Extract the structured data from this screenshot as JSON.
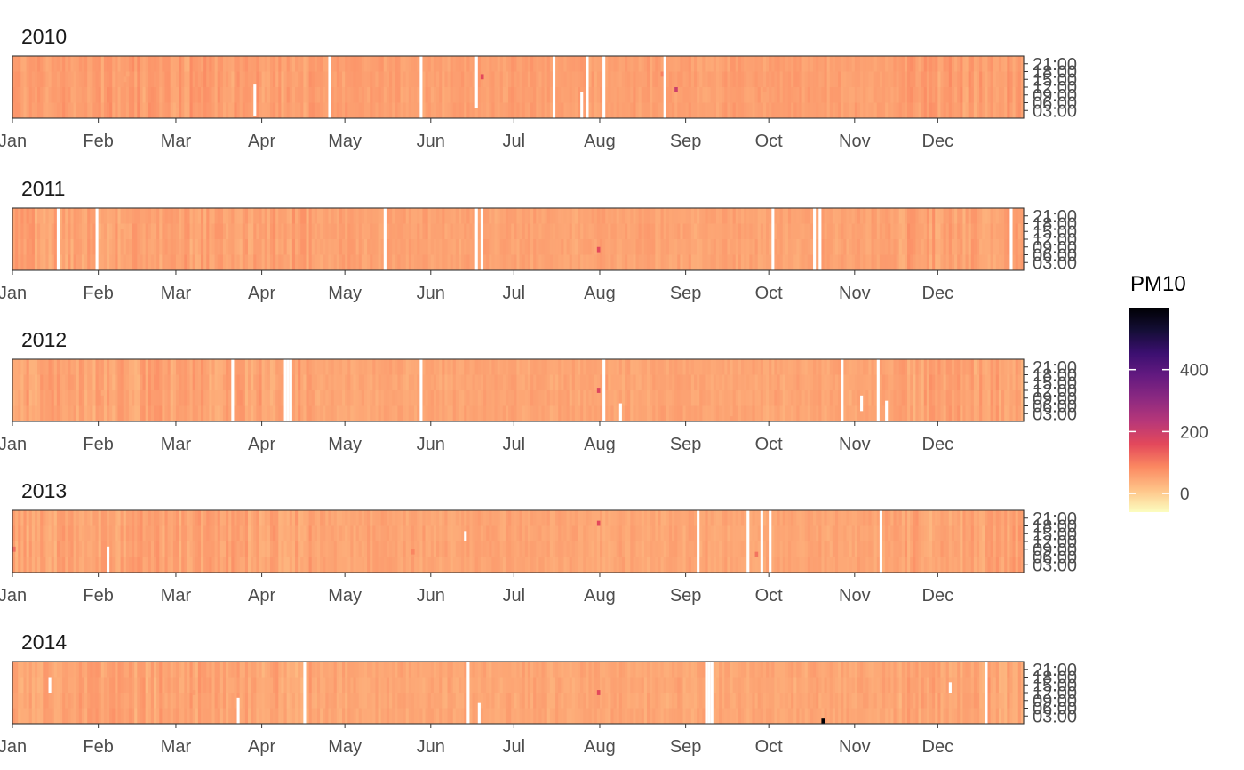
{
  "chart_data": {
    "type": "heatmap",
    "variable": "PM10",
    "legend": {
      "title": "PM10",
      "ticks": [
        0,
        200,
        400
      ],
      "range": [
        -60,
        600
      ],
      "colors": [
        "#FCFDBF",
        "#FEC287",
        "#FB8861",
        "#E3485B",
        "#B73779",
        "#8C2981",
        "#641A80",
        "#3B0F70",
        "#140E36",
        "#000004"
      ]
    },
    "x_axis": {
      "tick_labels": [
        "Jan",
        "Feb",
        "Mar",
        "Apr",
        "May",
        "Jun",
        "Jul",
        "Aug",
        "Sep",
        "Oct",
        "Nov",
        "Dec"
      ],
      "range_days": [
        1,
        366
      ]
    },
    "y_axis": {
      "tick_labels": [
        "03:00",
        "06:00",
        "09:00",
        "12:00",
        "15:00",
        "18:00",
        "21:00"
      ],
      "tick_hours": [
        3,
        6,
        9,
        12,
        15,
        18,
        21
      ],
      "range_hours": [
        0,
        24
      ]
    },
    "panels": [
      {
        "title": "2010",
        "typical_value": 55,
        "gaps": [
          [
            88,
            1,
            13
          ],
          [
            115,
            0,
            24
          ],
          [
            148,
            0,
            24
          ],
          [
            168,
            4,
            24
          ],
          [
            196,
            0,
            24
          ],
          [
            206,
            0,
            10
          ],
          [
            208,
            0,
            24
          ],
          [
            214,
            0,
            24
          ],
          [
            236,
            0,
            24
          ]
        ],
        "hotspots": [
          [
            41,
            50
          ],
          [
            42,
            48
          ],
          [
            47,
            50
          ],
          [
            60,
            45
          ],
          [
            170,
            160
          ],
          [
            235,
            95
          ],
          [
            240,
            200
          ],
          [
            272,
            60
          ]
        ]
      },
      {
        "title": "2011",
        "typical_value": 50,
        "gaps": [
          [
            17,
            0,
            24
          ],
          [
            31,
            0,
            24
          ],
          [
            135,
            0,
            24
          ],
          [
            168,
            0,
            24
          ],
          [
            170,
            0,
            24
          ],
          [
            275,
            0,
            24
          ],
          [
            290,
            0,
            24
          ],
          [
            292,
            0,
            24
          ],
          [
            361,
            0,
            24
          ]
        ],
        "hotspots": [
          [
            40,
            40
          ],
          [
            55,
            60
          ],
          [
            212,
            160
          ]
        ]
      },
      {
        "title": "2012",
        "typical_value": 48,
        "gaps": [
          [
            80,
            0,
            24
          ],
          [
            99,
            0,
            24
          ],
          [
            100,
            0,
            24
          ],
          [
            101,
            0,
            24
          ],
          [
            148,
            0,
            24
          ],
          [
            214,
            0,
            24
          ],
          [
            220,
            0,
            7
          ],
          [
            300,
            0,
            24
          ],
          [
            307,
            4,
            10
          ],
          [
            313,
            0,
            24
          ],
          [
            316,
            0,
            8
          ]
        ],
        "hotspots": [
          [
            33,
            45
          ],
          [
            212,
            170
          ],
          [
            260,
            60
          ]
        ]
      },
      {
        "title": "2013",
        "typical_value": 48,
        "gaps": [
          [
            35,
            0,
            10
          ],
          [
            164,
            12,
            16
          ],
          [
            248,
            0,
            24
          ],
          [
            266,
            0,
            24
          ],
          [
            271,
            0,
            24
          ],
          [
            274,
            0,
            24
          ],
          [
            314,
            0,
            24
          ]
        ],
        "hotspots": [
          [
            1,
            120
          ],
          [
            212,
            160
          ],
          [
            269,
            110
          ],
          [
            145,
            90
          ]
        ]
      },
      {
        "title": "2014",
        "typical_value": 46,
        "gaps": [
          [
            14,
            12,
            18
          ],
          [
            82,
            0,
            10
          ],
          [
            106,
            0,
            24
          ],
          [
            165,
            0,
            24
          ],
          [
            169,
            0,
            8
          ],
          [
            251,
            0,
            24
          ],
          [
            252,
            0,
            24
          ],
          [
            253,
            0,
            24
          ],
          [
            339,
            12,
            16
          ],
          [
            352,
            0,
            24
          ]
        ],
        "hotspots": [
          [
            66,
            60
          ],
          [
            212,
            160
          ],
          [
            293,
            600
          ]
        ]
      }
    ]
  }
}
